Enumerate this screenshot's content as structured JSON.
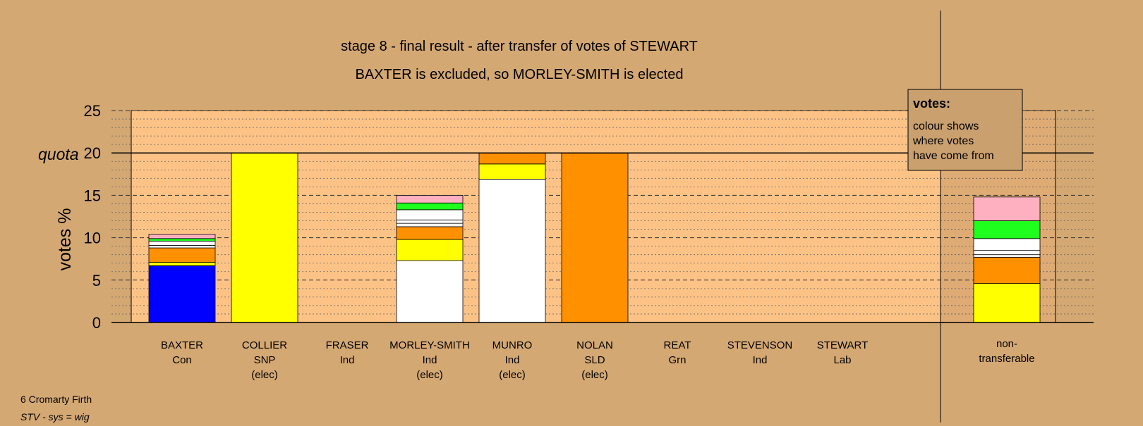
{
  "chart_data": {
    "type": "bar",
    "stacked": true,
    "title": "stage 8 - final result - after transfer of votes of STEWART",
    "subtitle": "BAXTER is excluded, so MORLEY-SMITH is elected",
    "ylabel": "votes %",
    "ylim": [
      0,
      25
    ],
    "yticks": [
      0,
      5,
      10,
      15,
      20,
      25
    ],
    "quota": 20,
    "quota_label": "quota",
    "grid": true,
    "legend": {
      "title": "votes:",
      "lines": [
        "colour shows",
        "where votes",
        "have come from"
      ],
      "placement": "top-right"
    },
    "candidates": [
      {
        "name": "BAXTER",
        "party": "Con",
        "status": "",
        "segments": [
          {
            "value": 6.7,
            "color": "#0000ff"
          },
          {
            "value": 0.4,
            "color": "#ffff00"
          },
          {
            "value": 1.7,
            "color": "#ff9100"
          },
          {
            "value": 0.3,
            "color": "#ffffff"
          },
          {
            "value": 0.5,
            "color": "#ffffff"
          },
          {
            "value": 0.3,
            "color": "#1eff1e"
          },
          {
            "value": 0.5,
            "color": "#ffb0c0"
          }
        ]
      },
      {
        "name": "COLLIER",
        "party": "SNP",
        "status": "(elec)",
        "segments": [
          {
            "value": 20,
            "color": "#ffff00"
          }
        ]
      },
      {
        "name": "FRASER",
        "party": "Ind",
        "status": "",
        "segments": []
      },
      {
        "name": "MORLEY-SMITH",
        "party": "Ind",
        "status": "(elec)",
        "segments": [
          {
            "value": 7.3,
            "color": "#ffffff"
          },
          {
            "value": 2.5,
            "color": "#ffff00"
          },
          {
            "value": 1.5,
            "color": "#ff9100"
          },
          {
            "value": 0.4,
            "color": "#ffffff"
          },
          {
            "value": 0.4,
            "color": "#ffffff"
          },
          {
            "value": 1.2,
            "color": "#ffffff"
          },
          {
            "value": 0.8,
            "color": "#1eff1e"
          },
          {
            "value": 0.9,
            "color": "#ffb0c0"
          }
        ]
      },
      {
        "name": "MUNRO",
        "party": "Ind",
        "status": "(elec)",
        "segments": [
          {
            "value": 16.9,
            "color": "#ffffff"
          },
          {
            "value": 1.8,
            "color": "#ffff00"
          },
          {
            "value": 1.3,
            "color": "#ff9100"
          }
        ]
      },
      {
        "name": "NOLAN",
        "party": "SLD",
        "status": "(elec)",
        "segments": [
          {
            "value": 20,
            "color": "#ff9100"
          }
        ]
      },
      {
        "name": "REAT",
        "party": "Grn",
        "status": "",
        "segments": []
      },
      {
        "name": "STEVENSON",
        "party": "Ind",
        "status": "",
        "segments": []
      },
      {
        "name": "STEWART",
        "party": "Lab",
        "status": "",
        "segments": []
      }
    ],
    "non_transferable": {
      "label_line1": "non-",
      "label_line2": "transferable",
      "segments": [
        {
          "value": 4.6,
          "color": "#ffff00"
        },
        {
          "value": 3.1,
          "color": "#ff9100"
        },
        {
          "value": 0.3,
          "color": "#ffffff"
        },
        {
          "value": 0.5,
          "color": "#ffffff"
        },
        {
          "value": 1.4,
          "color": "#ffffff"
        },
        {
          "value": 2.1,
          "color": "#1eff1e"
        },
        {
          "value": 2.8,
          "color": "#ffb0c0"
        }
      ]
    }
  },
  "footer": {
    "line1": "6 Cromarty Firth",
    "line2": "STV - sys = wig"
  },
  "colors": {
    "background": "#d4a873",
    "plot_area": "#fdc386",
    "legend_box": "#c9a06e"
  }
}
